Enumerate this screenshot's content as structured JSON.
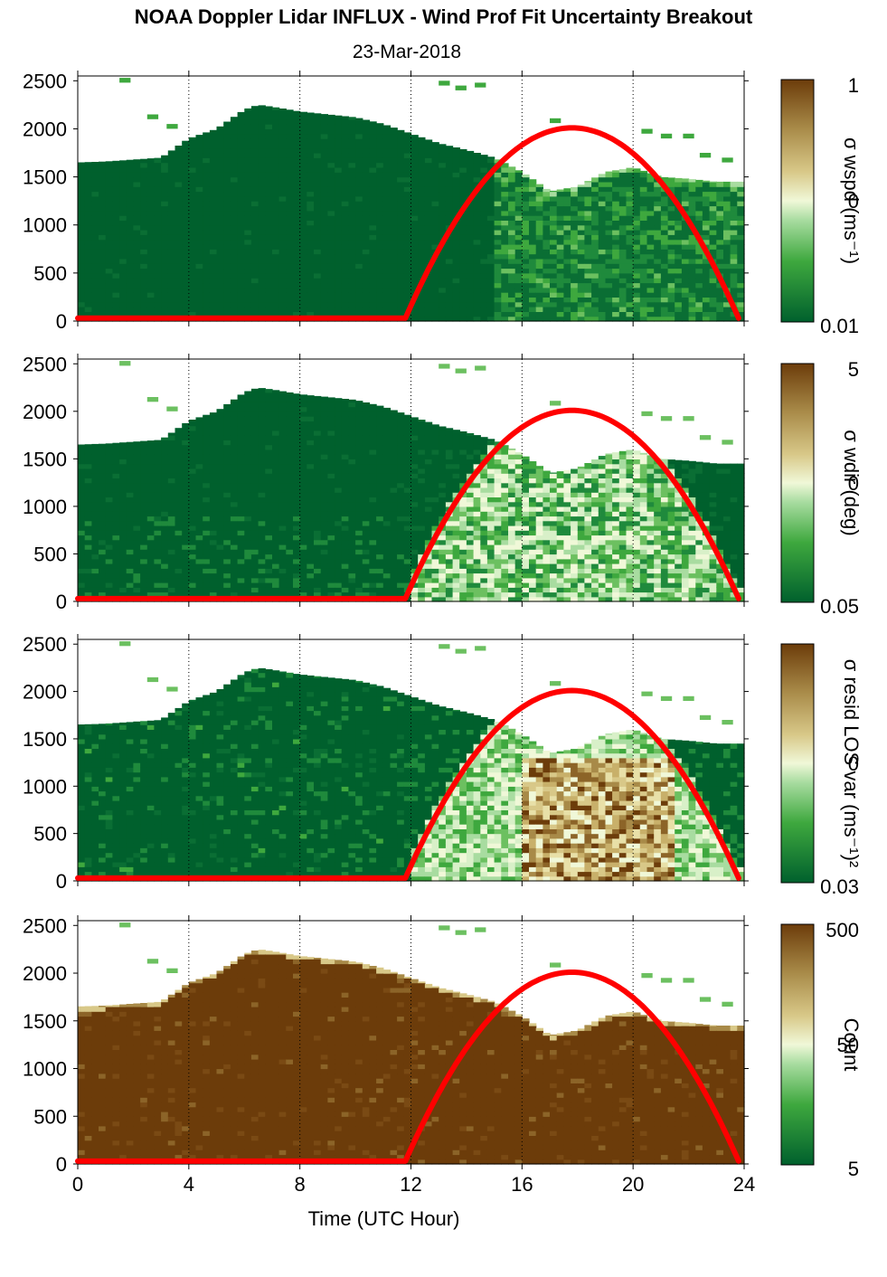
{
  "header": {
    "title": "NOAA Doppler Lidar INFLUX - Wind Prof Fit Uncertainty Breakout",
    "subtitle": "23-Mar-2018"
  },
  "colors": {
    "dark_green": "#00602d",
    "mid_green": "#3ea83e",
    "light_green": "#a8dca0",
    "pale": "#f0f8d8",
    "tan": "#c8b06a",
    "brown": "#6c3c0a",
    "sun_curve": "#ff0000",
    "gridline": "#000000"
  },
  "chart_data": [
    {
      "type": "heatmap",
      "panel": "wspd",
      "xlabel": "",
      "ylabel": "",
      "xlim": [
        0,
        24
      ],
      "ylim": [
        0,
        2550
      ],
      "x_ticks": [
        0,
        4,
        8,
        12,
        16,
        20,
        24
      ],
      "y_ticks": [
        0,
        500,
        1000,
        1500,
        2000,
        2500
      ],
      "vertical_gridlines_at": [
        4,
        8,
        12,
        16,
        20,
        24
      ],
      "colorbar": {
        "label": "σ wspd (ms⁻¹)",
        "tick_labels": [
          "1",
          "0",
          "0.01"
        ]
      },
      "sun_elevation_curve": {
        "x_start": 11.8,
        "x_peak": 17.8,
        "x_end": 23.8,
        "y_base": 30,
        "y_peak": 2010
      },
      "top_of_data_height_m": [
        [
          0,
          1650
        ],
        [
          1,
          1660
        ],
        [
          2,
          1680
        ],
        [
          3,
          1700
        ],
        [
          3.5,
          1800
        ],
        [
          4,
          1900
        ],
        [
          5,
          2000
        ],
        [
          6,
          2200
        ],
        [
          6.5,
          2250
        ],
        [
          7,
          2230
        ],
        [
          8,
          2180
        ],
        [
          9,
          2150
        ],
        [
          10,
          2120
        ],
        [
          11,
          2050
        ],
        [
          12,
          1950
        ],
        [
          13,
          1850
        ],
        [
          14,
          1780
        ],
        [
          15,
          1700
        ],
        [
          16,
          1550
        ],
        [
          17,
          1350
        ],
        [
          18,
          1400
        ],
        [
          19,
          1550
        ],
        [
          20,
          1600
        ],
        [
          21,
          1500
        ],
        [
          22,
          1480
        ],
        [
          23,
          1450
        ],
        [
          23.8,
          1450
        ]
      ],
      "uncertainty_pattern": [
        {
          "x_range": [
            0,
            15
          ],
          "level": "low"
        },
        {
          "x_range": [
            15,
            23.8
          ],
          "level": "low-moderate"
        }
      ]
    },
    {
      "type": "heatmap",
      "panel": "wdir",
      "xlabel": "",
      "ylabel": "",
      "xlim": [
        0,
        24
      ],
      "ylim": [
        0,
        2550
      ],
      "x_ticks": [
        0,
        4,
        8,
        12,
        16,
        20,
        24
      ],
      "y_ticks": [
        0,
        500,
        1000,
        1500,
        2000,
        2500
      ],
      "vertical_gridlines_at": [
        4,
        8,
        12,
        16,
        20,
        24
      ],
      "colorbar": {
        "label": "σ wdir (deg)",
        "tick_labels": [
          "5",
          "0",
          "0.05"
        ]
      },
      "sun_elevation_curve": {
        "x_start": 11.8,
        "x_peak": 17.8,
        "x_end": 23.8,
        "y_base": 30,
        "y_peak": 2010
      },
      "top_of_data_height_m": [
        [
          0,
          1650
        ],
        [
          1,
          1660
        ],
        [
          2,
          1680
        ],
        [
          3,
          1700
        ],
        [
          3.5,
          1800
        ],
        [
          4,
          1900
        ],
        [
          5,
          2000
        ],
        [
          6,
          2200
        ],
        [
          6.5,
          2250
        ],
        [
          7,
          2230
        ],
        [
          8,
          2180
        ],
        [
          9,
          2150
        ],
        [
          10,
          2120
        ],
        [
          11,
          2050
        ],
        [
          12,
          1950
        ],
        [
          13,
          1850
        ],
        [
          14,
          1780
        ],
        [
          15,
          1700
        ],
        [
          16,
          1550
        ],
        [
          17,
          1350
        ],
        [
          18,
          1400
        ],
        [
          19,
          1550
        ],
        [
          20,
          1600
        ],
        [
          21,
          1500
        ],
        [
          22,
          1480
        ],
        [
          23,
          1450
        ],
        [
          23.8,
          1450
        ]
      ],
      "uncertainty_pattern": [
        {
          "x_range": [
            0,
            12
          ],
          "level": "low"
        },
        {
          "x_range": [
            12,
            23.8
          ],
          "level": "moderate-high"
        }
      ]
    },
    {
      "type": "heatmap",
      "panel": "resid LOS var",
      "xlabel": "",
      "ylabel": "",
      "xlim": [
        0,
        24
      ],
      "ylim": [
        0,
        2550
      ],
      "x_ticks": [
        0,
        4,
        8,
        12,
        16,
        20,
        24
      ],
      "y_ticks": [
        0,
        500,
        1000,
        1500,
        2000,
        2500
      ],
      "vertical_gridlines_at": [
        4,
        8,
        12,
        16,
        20,
        24
      ],
      "colorbar": {
        "label": "σ resid LOS var (ms⁻¹)²",
        "tick_labels": [
          "0",
          "0.03"
        ]
      },
      "sun_elevation_curve": {
        "x_start": 11.8,
        "x_peak": 17.8,
        "x_end": 23.8,
        "y_base": 30,
        "y_peak": 2010
      },
      "top_of_data_height_m": [
        [
          0,
          1650
        ],
        [
          1,
          1660
        ],
        [
          2,
          1680
        ],
        [
          3,
          1700
        ],
        [
          3.5,
          1800
        ],
        [
          4,
          1900
        ],
        [
          5,
          2000
        ],
        [
          6,
          2200
        ],
        [
          6.5,
          2250
        ],
        [
          7,
          2230
        ],
        [
          8,
          2180
        ],
        [
          9,
          2150
        ],
        [
          10,
          2120
        ],
        [
          11,
          2050
        ],
        [
          12,
          1950
        ],
        [
          13,
          1850
        ],
        [
          14,
          1780
        ],
        [
          15,
          1700
        ],
        [
          16,
          1550
        ],
        [
          17,
          1350
        ],
        [
          18,
          1400
        ],
        [
          19,
          1550
        ],
        [
          20,
          1600
        ],
        [
          21,
          1500
        ],
        [
          22,
          1480
        ],
        [
          23,
          1450
        ],
        [
          23.8,
          1450
        ]
      ],
      "uncertainty_pattern": [
        {
          "x_range": [
            0,
            12
          ],
          "level": "low"
        },
        {
          "x_range": [
            12,
            23.8
          ],
          "level": "high"
        }
      ]
    },
    {
      "type": "heatmap",
      "panel": "Count",
      "xlabel": "Time (UTC Hour)",
      "ylabel": "",
      "xlim": [
        0,
        24
      ],
      "ylim": [
        0,
        2550
      ],
      "x_ticks": [
        0,
        4,
        8,
        12,
        16,
        20,
        24
      ],
      "y_ticks": [
        0,
        500,
        1000,
        1500,
        2000,
        2500
      ],
      "vertical_gridlines_at": [
        4,
        8,
        12,
        16,
        20,
        24
      ],
      "colorbar": {
        "label": "Count",
        "tick_labels": [
          "500",
          "50",
          "5"
        ]
      },
      "sun_elevation_curve": {
        "x_start": 11.8,
        "x_peak": 17.8,
        "x_end": 23.8,
        "y_base": 30,
        "y_peak": 2010
      },
      "top_of_data_height_m": [
        [
          0,
          1650
        ],
        [
          1,
          1660
        ],
        [
          2,
          1680
        ],
        [
          3,
          1700
        ],
        [
          3.5,
          1800
        ],
        [
          4,
          1900
        ],
        [
          5,
          2000
        ],
        [
          6,
          2200
        ],
        [
          6.5,
          2250
        ],
        [
          7,
          2230
        ],
        [
          8,
          2180
        ],
        [
          9,
          2150
        ],
        [
          10,
          2120
        ],
        [
          11,
          2050
        ],
        [
          12,
          1950
        ],
        [
          13,
          1850
        ],
        [
          14,
          1780
        ],
        [
          15,
          1700
        ],
        [
          16,
          1550
        ],
        [
          17,
          1350
        ],
        [
          18,
          1400
        ],
        [
          19,
          1550
        ],
        [
          20,
          1600
        ],
        [
          21,
          1500
        ],
        [
          22,
          1480
        ],
        [
          23,
          1450
        ],
        [
          23.8,
          1450
        ]
      ],
      "uncertainty_pattern": [
        {
          "x_range": [
            0,
            23.8
          ],
          "level": "very high count"
        }
      ]
    }
  ]
}
